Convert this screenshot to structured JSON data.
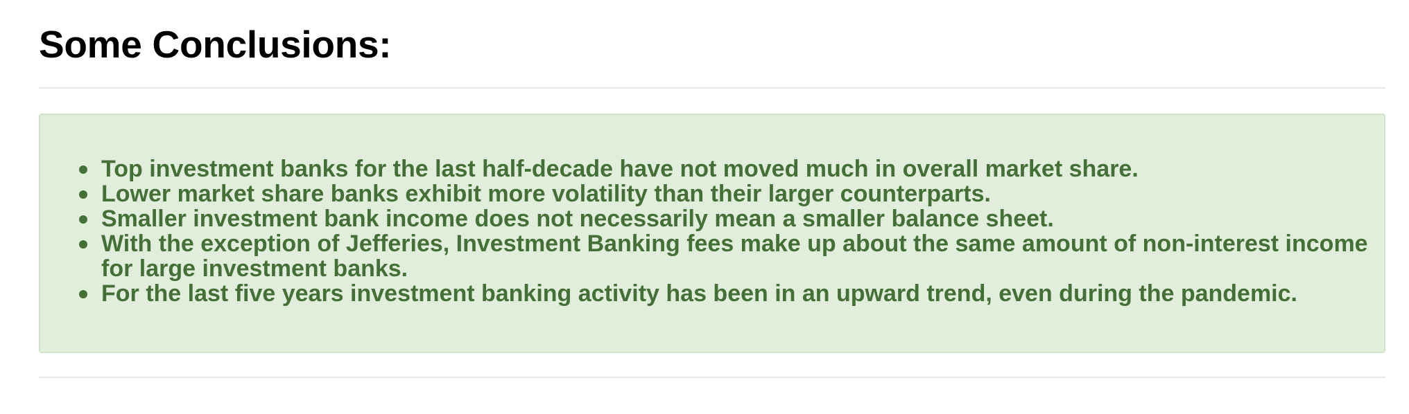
{
  "heading": "Some Conclusions:",
  "conclusions": [
    "Top investment banks for the last half-decade have not moved much in overall market share.",
    "Lower market share banks exhibit more volatility than their larger counterparts.",
    "Smaller investment bank income does not necessarily mean a smaller balance sheet.",
    "With the exception of Jefferies, Investment Banking fees make up about the same amount of non-interest income for large investment banks.",
    "For the last five years investment banking activity has been in an upward trend, even during the pandemic."
  ],
  "colors": {
    "alert_background": "#e1eedb",
    "alert_border": "#cfe3c6",
    "alert_text": "#447038",
    "heading_text": "#000000",
    "rule": "#e7e7e7"
  }
}
